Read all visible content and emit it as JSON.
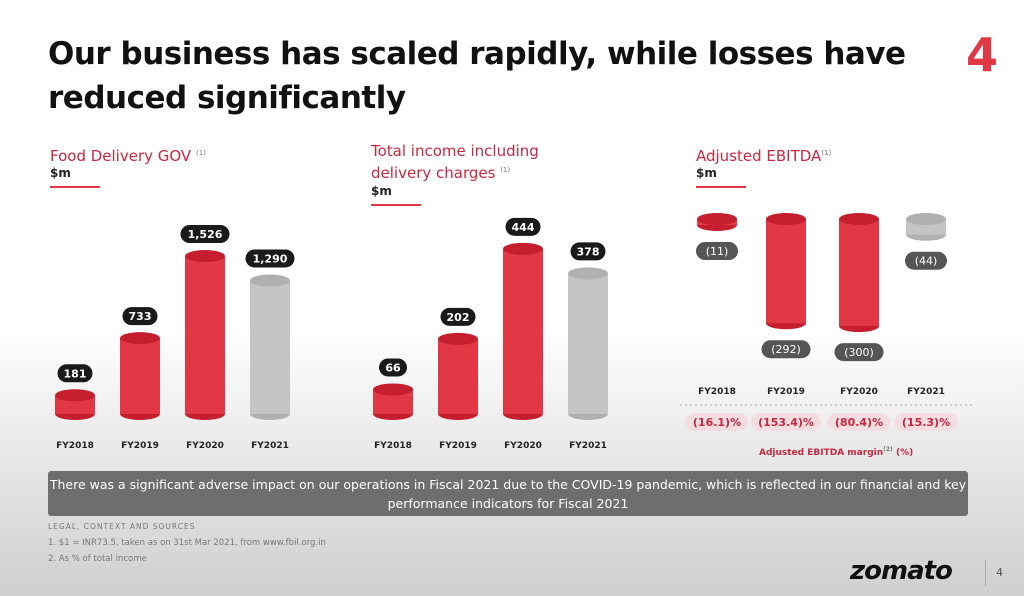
{
  "title": "Our business has scaled rapidly, while losses have reduced significantly",
  "page_badge": "4",
  "chart_data": [
    {
      "type": "bar",
      "title": "Food Delivery GOV",
      "title_note": "(1)",
      "unit": "$m",
      "categories": [
        "FY2018",
        "FY2019",
        "FY2020",
        "FY2021"
      ],
      "values": [
        181,
        733,
        1526,
        1290
      ],
      "labels": [
        "181",
        "733",
        "1,526",
        "1,290"
      ],
      "colors": [
        "#e23744",
        "#e23744",
        "#e23744",
        "#c4c4c4"
      ]
    },
    {
      "type": "bar",
      "title": "Total income including delivery charges",
      "title_note": "(1)",
      "unit": "$m",
      "categories": [
        "FY2018",
        "FY2019",
        "FY2020",
        "FY2021"
      ],
      "values": [
        66,
        202,
        444,
        378
      ],
      "labels": [
        "66",
        "202",
        "444",
        "378"
      ],
      "colors": [
        "#e23744",
        "#e23744",
        "#e23744",
        "#c4c4c4"
      ]
    },
    {
      "type": "bar",
      "title": "Adjusted EBITDA",
      "title_note": "(1)",
      "unit": "$m",
      "categories": [
        "FY2018",
        "FY2019",
        "FY2020",
        "FY2021"
      ],
      "values": [
        -11,
        -292,
        -300,
        -44
      ],
      "labels": [
        "(11)",
        "(292)",
        "(300)",
        "(44)"
      ],
      "colors": [
        "#e23744",
        "#e23744",
        "#e23744",
        "#c4c4c4"
      ],
      "margins": [
        "(16.1)%",
        "(153.4)%",
        "(80.4)%",
        "(15.3)%"
      ],
      "margin_caption": "Adjusted EBITDA margin",
      "margin_note": "(2)",
      "margin_unit": "(%)"
    }
  ],
  "banner": "There was a significant adverse impact on our operations in Fiscal 2021 due to the COVID-19 pandemic, which is reflected in our financial and key performance indicators for Fiscal 2021",
  "legal": {
    "heading": "LEGAL, CONTEXT AND SOURCES",
    "notes": [
      "1. $1 = INR73.5, taken as on 31st Mar 2021, from www.fbil.org.in",
      "2. As % of total income"
    ]
  },
  "footer": {
    "logo": "zomato",
    "page": "4"
  }
}
